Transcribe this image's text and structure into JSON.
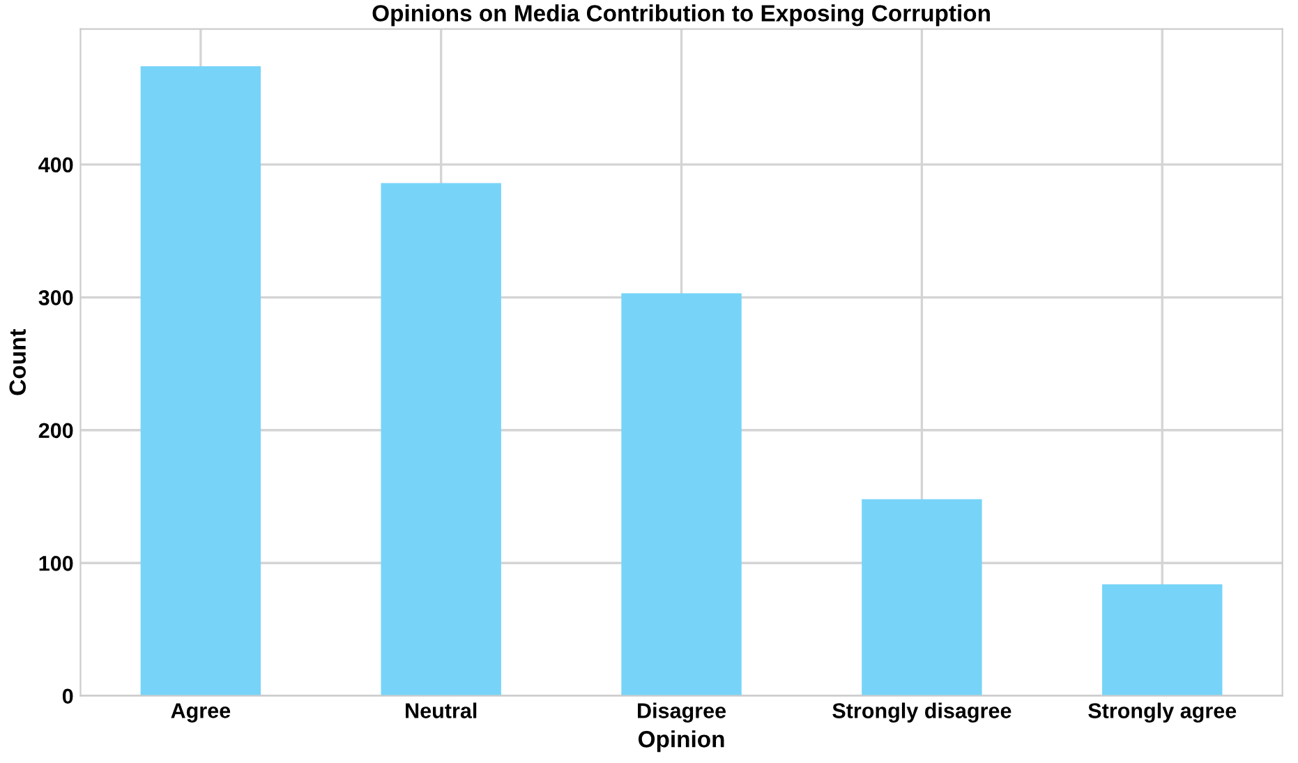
{
  "chart_data": {
    "type": "bar",
    "title": "Opinions on Media Contribution to Exposing Corruption",
    "xlabel": "Opinion",
    "ylabel": "Count",
    "categories": [
      "Agree",
      "Neutral",
      "Disagree",
      "Strongly disagree",
      "Strongly agree"
    ],
    "values": [
      474,
      386,
      303,
      148,
      84
    ],
    "color": "#77d4f8",
    "ylim": [
      0,
      502
    ],
    "yticks": [
      0,
      100,
      200,
      300,
      400
    ],
    "grid": true
  }
}
